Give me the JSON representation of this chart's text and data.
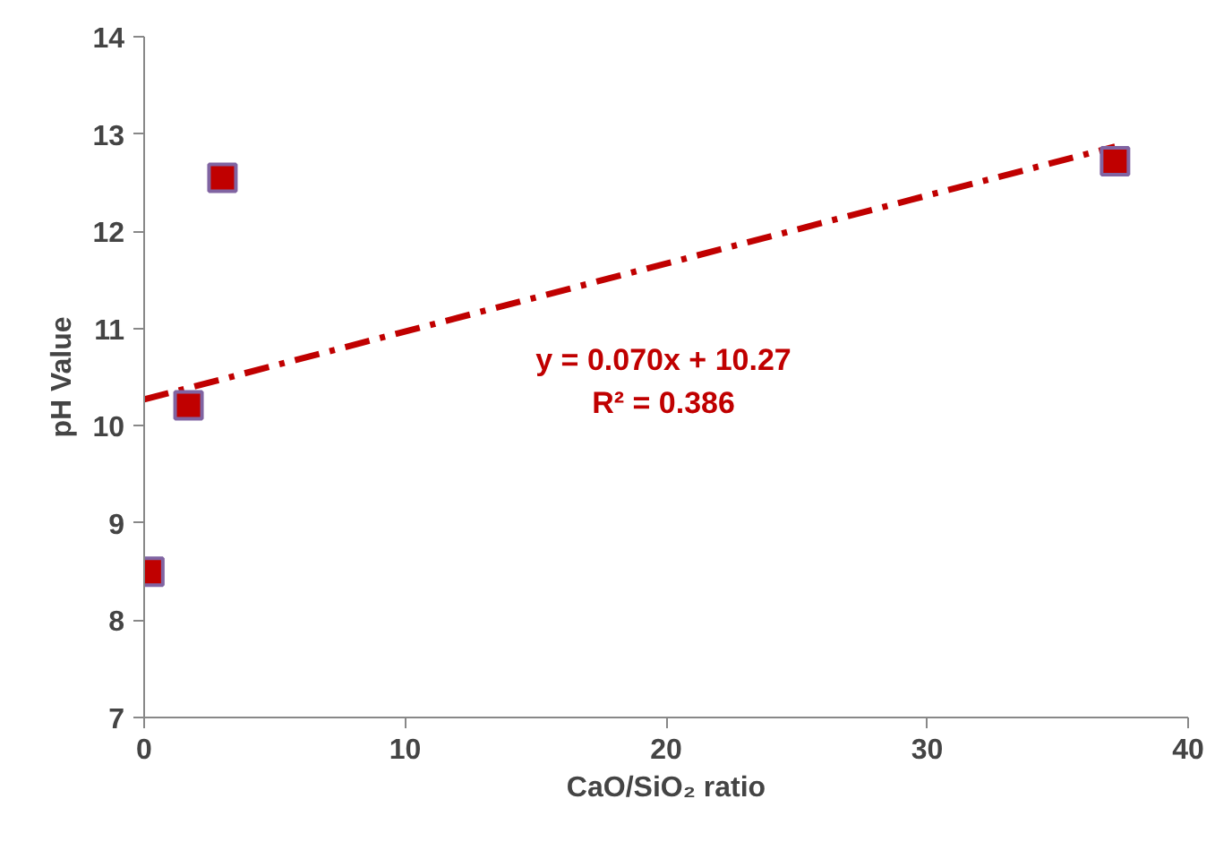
{
  "chart_data": {
    "type": "scatter",
    "xlabel": "CaO/SiO₂ ratio",
    "ylabel": "pH Value",
    "xlim": [
      0,
      40
    ],
    "xticks": [
      0,
      10,
      20,
      30,
      40
    ],
    "ylim": [
      7,
      14
    ],
    "yticks": [
      7,
      8,
      9,
      10,
      11,
      12,
      13,
      14
    ],
    "grid": false,
    "series": [
      {
        "marker": "square",
        "color": "#c00000",
        "x": [
          0.2,
          1.7,
          3.0,
          37.2
        ],
        "values": [
          8.5,
          10.21,
          12.55,
          12.72
        ]
      },
      {
        "type": "line",
        "color": "#c00000",
        "line_style": "dashdot",
        "x": [
          0,
          37.2
        ],
        "values": [
          10.27,
          12.87
        ]
      }
    ],
    "annotations": [
      "y = 0.070x + 10.27",
      "R² = 0.386"
    ]
  }
}
